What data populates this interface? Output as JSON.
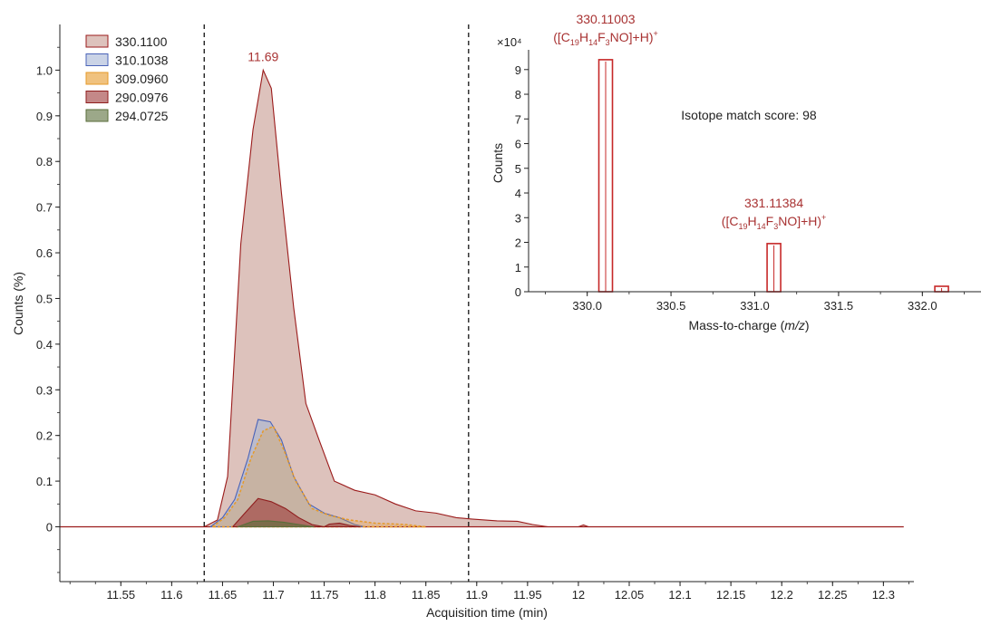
{
  "colors": {
    "axis": "#222222",
    "dashed": "#111111",
    "annotation": "#a83232",
    "inset_bar": "#c62828",
    "s330_fill": "#c79a90",
    "s330_line": "#9b1b1b",
    "s310_fill": "#a7b6d6",
    "s310_line": "#4a63b8",
    "s309_line": "#e69a2a",
    "s290_fill": "#9c3838",
    "s290_line": "#8f1e1e",
    "s294_line": "#5a6e3a"
  },
  "chart_data": [
    {
      "type": "area",
      "title": "",
      "xlabel": "Acquisition time (min)",
      "ylabel": "Counts (%)",
      "xlim": [
        11.49,
        12.33
      ],
      "ylim": [
        -0.12,
        1.1
      ],
      "x_ticks": [
        "11.55",
        "11.6",
        "11.65",
        "11.7",
        "11.75",
        "11.8",
        "11.85",
        "11.9",
        "11.95",
        "12",
        "12.05",
        "12.1",
        "12.15",
        "12.2",
        "12.25",
        "12.3"
      ],
      "x_tick_values": [
        11.55,
        11.6,
        11.65,
        11.7,
        11.75,
        11.8,
        11.85,
        11.9,
        11.95,
        12.0,
        12.05,
        12.1,
        12.15,
        12.2,
        12.25,
        12.3
      ],
      "y_ticks": [
        "0",
        "0.1",
        "0.2",
        "0.3",
        "0.4",
        "0.5",
        "0.6",
        "0.7",
        "0.8",
        "0.9",
        "1.0"
      ],
      "y_tick_values": [
        0,
        0.1,
        0.2,
        0.3,
        0.4,
        0.5,
        0.6,
        0.7,
        0.8,
        0.9,
        1.0
      ],
      "grid": false,
      "legend_position": "top-left",
      "peak_label": {
        "text": "11.69",
        "x": 11.69,
        "y": 1.0
      },
      "vlines": [
        11.632,
        11.892
      ],
      "baseline_xrange": [
        11.49,
        12.32
      ],
      "series": [
        {
          "name": "330.1100",
          "fill_key": "s330_fill",
          "line_key": "s330_line",
          "x": [
            11.632,
            11.645,
            11.655,
            11.668,
            11.68,
            11.69,
            11.698,
            11.708,
            11.72,
            11.732,
            11.745,
            11.76,
            11.78,
            11.8,
            11.82,
            11.84,
            11.86,
            11.88,
            11.895,
            11.92,
            11.94,
            11.955,
            11.97,
            12.0,
            12.005,
            12.01,
            12.02
          ],
          "y": [
            0,
            0.015,
            0.11,
            0.62,
            0.87,
            1.0,
            0.96,
            0.73,
            0.48,
            0.27,
            0.19,
            0.1,
            0.08,
            0.07,
            0.05,
            0.035,
            0.03,
            0.02,
            0.017,
            0.013,
            0.012,
            0.005,
            0.0,
            0.0,
            0.004,
            0.0,
            0.0
          ]
        },
        {
          "name": "310.1038",
          "fill_key": "s310_fill",
          "line_key": "s310_line",
          "x": [
            11.638,
            11.65,
            11.662,
            11.675,
            11.685,
            11.697,
            11.708,
            11.72,
            11.735,
            11.75,
            11.765,
            11.78,
            11.79
          ],
          "y": [
            0,
            0.02,
            0.06,
            0.15,
            0.235,
            0.23,
            0.19,
            0.11,
            0.05,
            0.03,
            0.02,
            0.005,
            0
          ]
        },
        {
          "name": "309.0960",
          "fill_key": "s309_line",
          "line_key": "s309_line",
          "x": [
            11.64,
            11.652,
            11.665,
            11.678,
            11.69,
            11.7,
            11.71,
            11.722,
            11.738,
            11.755,
            11.775,
            11.8,
            11.83,
            11.85
          ],
          "y": [
            0,
            0.02,
            0.06,
            0.15,
            0.21,
            0.22,
            0.17,
            0.1,
            0.04,
            0.025,
            0.015,
            0.008,
            0.005,
            0
          ]
        },
        {
          "name": "290.0976",
          "fill_key": "s290_fill",
          "line_key": "s290_line",
          "x": [
            11.66,
            11.672,
            11.685,
            11.698,
            11.712,
            11.725,
            11.738,
            11.75,
            11.755,
            11.765,
            11.775,
            11.785
          ],
          "y": [
            0,
            0.03,
            0.062,
            0.055,
            0.04,
            0.02,
            0.005,
            0,
            0.006,
            0.008,
            0.003,
            0
          ]
        },
        {
          "name": "294.0725",
          "fill_key": "s294_line",
          "line_key": "s294_line",
          "x": [
            11.665,
            11.68,
            11.695,
            11.71,
            11.725,
            11.74
          ],
          "y": [
            0,
            0.012,
            0.013,
            0.01,
            0.005,
            0
          ]
        }
      ]
    },
    {
      "type": "bar",
      "title": "",
      "xlabel_prefix": "Mass-to-charge (",
      "xlabel_italic": "m/z",
      "xlabel_suffix": ")",
      "ylabel": "Counts",
      "y_multiplier": "×10⁴",
      "xlim": [
        329.65,
        332.35
      ],
      "ylim": [
        0,
        9.8
      ],
      "x_ticks": [
        "330.0",
        "330.5",
        "331.0",
        "331.5",
        "332.0"
      ],
      "x_tick_values": [
        330.0,
        330.5,
        331.0,
        331.5,
        332.0
      ],
      "y_ticks": [
        "0",
        "1",
        "2",
        "3",
        "4",
        "5",
        "6",
        "7",
        "8",
        "9"
      ],
      "y_tick_values": [
        0,
        1,
        2,
        3,
        4,
        5,
        6,
        7,
        8,
        9
      ],
      "annotation": "Isotope match score: 98",
      "bars": [
        {
          "x": 330.11,
          "y": 9.4
        },
        {
          "x": 331.114,
          "y": 1.95
        },
        {
          "x": 332.115,
          "y": 0.22
        }
      ],
      "peak_labels": [
        {
          "mz": "330.11003",
          "formula": "([C19H14F3NO]+H)+"
        },
        {
          "mz": "331.11384",
          "formula": "([C19H14F3NO]+H)+"
        }
      ]
    }
  ]
}
